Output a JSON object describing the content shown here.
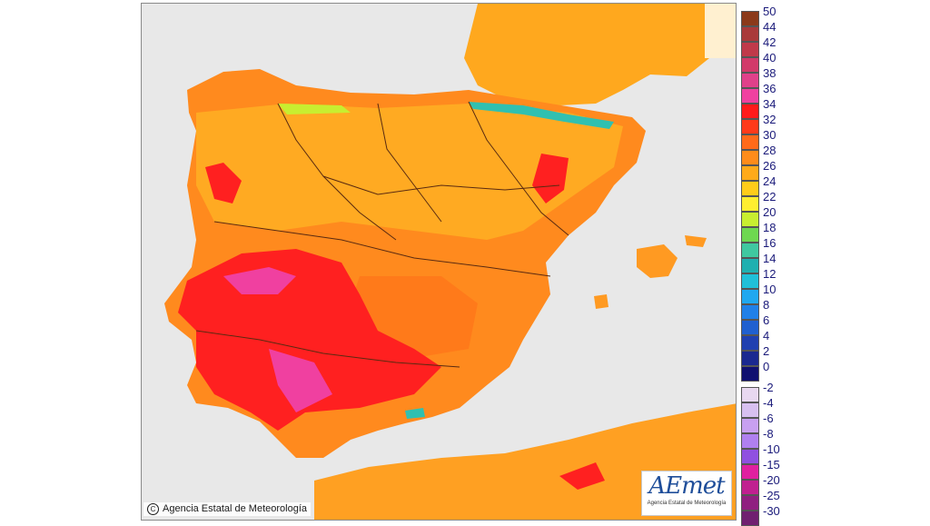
{
  "map": {
    "copyright": "Agencia Estatal de Meteorología",
    "logo_word": "AEmet",
    "logo_sub": "Agencia Estatal de Meteorología"
  },
  "legend": {
    "labels": [
      "50",
      "44",
      "42",
      "40",
      "38",
      "36",
      "34",
      "32",
      "30",
      "28",
      "26",
      "24",
      "22",
      "20",
      "18",
      "16",
      "14",
      "12",
      "10",
      "8",
      "6",
      "4",
      "2",
      "0",
      "-2",
      "-4",
      "-6",
      "-8",
      "-10",
      "-15",
      "-20",
      "-25",
      "-30"
    ],
    "colors": {
      "50": "#8b3a1a",
      "44": "#a93a3a",
      "42": "#c03a4a",
      "40": "#d23a6a",
      "38": "#e0408a",
      "36": "#f040a0",
      "34": "#ff1a1a",
      "32": "#ff3a1a",
      "30": "#ff6a1a",
      "28": "#ff8c1a",
      "26": "#ffaa1a",
      "24": "#ffcc1a",
      "22": "#ffee30",
      "20": "#c8ee30",
      "18": "#6ed850",
      "16": "#40c8a0",
      "14": "#20b0b0",
      "12": "#20c0d8",
      "10": "#20a8f0",
      "8": "#2080e8",
      "6": "#2060d0",
      "4": "#2040b0",
      "2": "#1a2890",
      "0": "#101070",
      "-2": "#e8d8f0",
      "-4": "#d8c0f0",
      "-6": "#c8a0f0",
      "-8": "#b080f0",
      "-10": "#9050e0",
      "-15": "#e020a0",
      "-20": "#c02090",
      "-25": "#902080",
      "-30": "#702070"
    }
  }
}
